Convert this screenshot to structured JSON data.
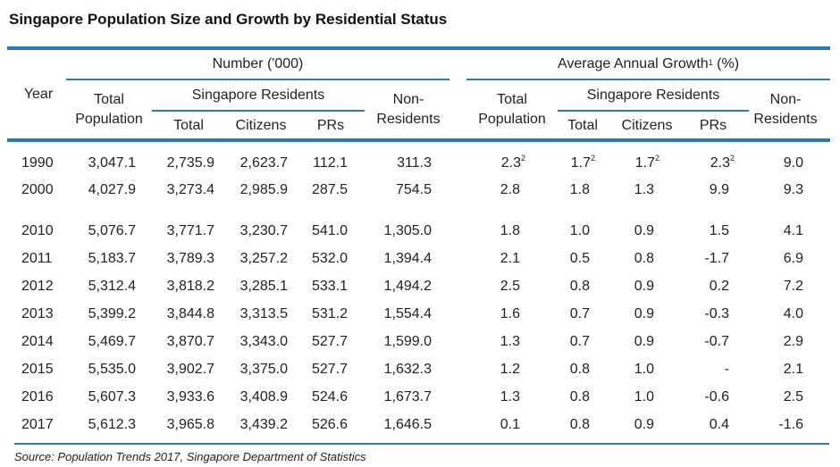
{
  "title": "Singapore Population Size and Growth by Residential Status",
  "headers": {
    "year": "Year",
    "number_group": "Number ('000)",
    "growth_group": "Average Annual Growth",
    "growth_group_sup": "1",
    "growth_group_unit": " (%)",
    "total_population": "Total Population",
    "singapore_residents": "Singapore Residents",
    "total": "Total",
    "citizens": "Citizens",
    "prs": "PRs",
    "non_residents": "Non-Residents"
  },
  "rows": [
    {
      "year": "1990",
      "n": [
        "3,047.1",
        "2,735.9",
        "2,623.7",
        "112.1",
        "311.3"
      ],
      "g": [
        "2.3",
        "1.7",
        "1.7",
        "2.3",
        "9.0"
      ],
      "gsup": [
        "2",
        "2",
        "2",
        "2",
        ""
      ]
    },
    {
      "year": "2000",
      "n": [
        "4,027.9",
        "3,273.4",
        "2,985.9",
        "287.5",
        "754.5"
      ],
      "g": [
        "2.8",
        "1.8",
        "1.3",
        "9.9",
        "9.3"
      ],
      "gsup": [
        "",
        "",
        "",
        "",
        ""
      ]
    },
    {
      "year": "2010",
      "n": [
        "5,076.7",
        "3,771.7",
        "3,230.7",
        "541.0",
        "1,305.0"
      ],
      "g": [
        "1.8",
        "1.0",
        "0.9",
        "1.5",
        "4.1"
      ],
      "gsup": [
        "",
        "",
        "",
        "",
        ""
      ]
    },
    {
      "year": "2011",
      "n": [
        "5,183.7",
        "3,789.3",
        "3,257.2",
        "532.0",
        "1,394.4"
      ],
      "g": [
        "2.1",
        "0.5",
        "0.8",
        "-1.7",
        "6.9"
      ],
      "gsup": [
        "",
        "",
        "",
        "",
        ""
      ]
    },
    {
      "year": "2012",
      "n": [
        "5,312.4",
        "3,818.2",
        "3,285.1",
        "533.1",
        "1,494.2"
      ],
      "g": [
        "2.5",
        "0.8",
        "0.9",
        "0.2",
        "7.2"
      ],
      "gsup": [
        "",
        "",
        "",
        "",
        ""
      ]
    },
    {
      "year": "2013",
      "n": [
        "5,399.2",
        "3,844.8",
        "3,313.5",
        "531.2",
        "1,554.4"
      ],
      "g": [
        "1.6",
        "0.7",
        "0.9",
        "-0.3",
        "4.0"
      ],
      "gsup": [
        "",
        "",
        "",
        "",
        ""
      ]
    },
    {
      "year": "2014",
      "n": [
        "5,469.7",
        "3,870.7",
        "3,343.0",
        "527.7",
        "1,599.0"
      ],
      "g": [
        "1.3",
        "0.7",
        "0.9",
        "-0.7",
        "2.9"
      ],
      "gsup": [
        "",
        "",
        "",
        "",
        ""
      ]
    },
    {
      "year": "2015",
      "n": [
        "5,535.0",
        "3,902.7",
        "3,375.0",
        "527.7",
        "1,632.3"
      ],
      "g": [
        "1.2",
        "0.8",
        "1.0",
        "-",
        "2.1"
      ],
      "gsup": [
        "",
        "",
        "",
        "",
        ""
      ]
    },
    {
      "year": "2016",
      "n": [
        "5,607.3",
        "3,933.6",
        "3,408.9",
        "524.6",
        "1,673.7"
      ],
      "g": [
        "1.3",
        "0.8",
        "1.0",
        "-0.6",
        "2.5"
      ],
      "gsup": [
        "",
        "",
        "",
        "",
        ""
      ]
    },
    {
      "year": "2017",
      "n": [
        "5,612.3",
        "3,965.8",
        "3,439.2",
        "526.6",
        "1,646.5"
      ],
      "g": [
        "0.1",
        "0.8",
        "0.9",
        "0.4",
        "-1.6"
      ],
      "gsup": [
        "",
        "",
        "",
        "",
        ""
      ]
    }
  ],
  "source": "Source: Population Trends 2017, Singapore Department of Statistics",
  "colors": {
    "rule": "#2a7ab0"
  }
}
